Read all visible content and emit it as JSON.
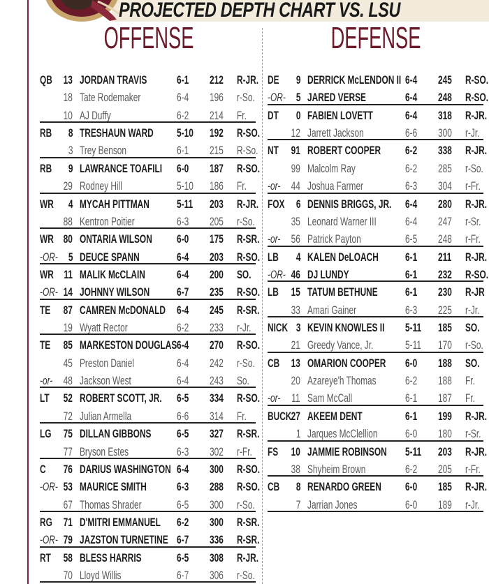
{
  "header": {
    "title": "PROJECTED DEPTH CHART VS. LSU",
    "logo": "seminole-head-logo"
  },
  "colors": {
    "maroon": "#6b1a2a",
    "banner": "#f3ecdc"
  },
  "offense": {
    "title": "OFFENSE",
    "rows": [
      {
        "pos": "QB",
        "num": "13",
        "name": "JORDAN TRAVIS",
        "ht": "6-1",
        "wt": "212",
        "cl": "R-JR.",
        "starter": true
      },
      {
        "pos": "",
        "num": "18",
        "name": "Tate Rodemaker",
        "ht": "6-4",
        "wt": "196",
        "cl": "r-So."
      },
      {
        "pos": "",
        "num": "10",
        "name": "AJ Duffy",
        "ht": "6-2",
        "wt": "214",
        "cl": "Fr.",
        "end": true
      },
      {
        "pos": "RB",
        "num": "8",
        "name": "TRESHAUN WARD",
        "ht": "5-10",
        "wt": "192",
        "cl": "R-SO.",
        "starter": true
      },
      {
        "pos": "",
        "num": "3",
        "name": "Trey Benson",
        "ht": "6-1",
        "wt": "215",
        "cl": "R-So.",
        "end": true
      },
      {
        "pos": "RB",
        "num": "9",
        "name": "LAWRANCE TOAFILI",
        "ht": "6-0",
        "wt": "187",
        "cl": "R-SO.",
        "starter": true
      },
      {
        "pos": "",
        "num": "29",
        "name": "Rodney Hill",
        "ht": "5-10",
        "wt": "186",
        "cl": "Fr.",
        "end": true
      },
      {
        "pos": "WR",
        "num": "4",
        "name": "MYCAH PITTMAN",
        "ht": "5-11",
        "wt": "203",
        "cl": "R-JR.",
        "starter": true
      },
      {
        "pos": "",
        "num": "88",
        "name": "Kentron Poitier",
        "ht": "6-3",
        "wt": "205",
        "cl": "r-So.",
        "end": true
      },
      {
        "pos": "WR",
        "num": "80",
        "name": "ONTARIA WILSON",
        "ht": "6-0",
        "wt": "175",
        "cl": "R-SR.",
        "starter": true
      },
      {
        "pos": "-OR-",
        "num": "5",
        "name": "DEUCE SPANN",
        "ht": "6-4",
        "wt": "203",
        "cl": "R-SO.",
        "starter": true,
        "or": true,
        "end": true
      },
      {
        "pos": "WR",
        "num": "11",
        "name": "MALIK McCLAIN",
        "ht": "6-4",
        "wt": "200",
        "cl": "SO.",
        "starter": true
      },
      {
        "pos": "-OR-",
        "num": "14",
        "name": "JOHNNY WILSON",
        "ht": "6-7",
        "wt": "235",
        "cl": "R-SO.",
        "starter": true,
        "or": true,
        "end": true
      },
      {
        "pos": "TE",
        "num": "87",
        "name": "CAMREN McDONALD",
        "ht": "6-4",
        "wt": "245",
        "cl": "R-SR.",
        "starter": true
      },
      {
        "pos": "",
        "num": "19",
        "name": "Wyatt Rector",
        "ht": "6-2",
        "wt": "233",
        "cl": "r-Jr.",
        "end": true
      },
      {
        "pos": "TE",
        "num": "85",
        "name": "MARKESTON DOUGLAS",
        "ht": "6-4",
        "wt": "270",
        "cl": "R-SO.",
        "starter": true
      },
      {
        "pos": "",
        "num": "45",
        "name": "Preston Daniel",
        "ht": "6-4",
        "wt": "242",
        "cl": "r-So."
      },
      {
        "pos": "-or-",
        "num": "48",
        "name": "Jackson West",
        "ht": "6-4",
        "wt": "243",
        "cl": "So.",
        "or": true,
        "end": true
      },
      {
        "pos": "LT",
        "num": "52",
        "name": "ROBERT SCOTT, JR.",
        "ht": "6-5",
        "wt": "334",
        "cl": "R-SO.",
        "starter": true
      },
      {
        "pos": "",
        "num": "72",
        "name": "Julian Armella",
        "ht": "6-6",
        "wt": "314",
        "cl": "Fr.",
        "end": true
      },
      {
        "pos": "LG",
        "num": "75",
        "name": "DILLAN GIBBONS",
        "ht": "6-5",
        "wt": "327",
        "cl": "R-SR.",
        "starter": true
      },
      {
        "pos": "",
        "num": "77",
        "name": "Bryson Estes",
        "ht": "6-3",
        "wt": "302",
        "cl": "r-Fr.",
        "end": true
      },
      {
        "pos": "C",
        "num": "76",
        "name": "DARIUS WASHINGTON",
        "ht": "6-4",
        "wt": "300",
        "cl": "R-SO.",
        "starter": true
      },
      {
        "pos": "-OR-",
        "num": "53",
        "name": "MAURICE SMITH",
        "ht": "6-3",
        "wt": "288",
        "cl": "R-SO.",
        "starter": true,
        "or": true
      },
      {
        "pos": "",
        "num": "67",
        "name": "Thomas Shrader",
        "ht": "6-5",
        "wt": "300",
        "cl": "r-So.",
        "end": true
      },
      {
        "pos": "RG",
        "num": "71",
        "name": "D'MITRI EMMANUEL",
        "ht": "6-2",
        "wt": "300",
        "cl": "R-SR.",
        "starter": true
      },
      {
        "pos": "-OR-",
        "num": "79",
        "name": "JAZSTON TURNETINE",
        "ht": "6-7",
        "wt": "336",
        "cl": "R-SR.",
        "starter": true,
        "or": true,
        "end": true
      },
      {
        "pos": "RT",
        "num": "58",
        "name": "BLESS HARRIS",
        "ht": "6-5",
        "wt": "308",
        "cl": "R-JR.",
        "starter": true
      },
      {
        "pos": "",
        "num": "70",
        "name": "Lloyd Willis",
        "ht": "6-7",
        "wt": "306",
        "cl": "r-So.",
        "end": true
      }
    ]
  },
  "defense": {
    "title": "DEFENSE",
    "rows": [
      {
        "pos": "DE",
        "num": "9",
        "name": "DERRICK McLENDON II",
        "ht": "6-4",
        "wt": "245",
        "cl": "R-SO.",
        "starter": true
      },
      {
        "pos": "-OR-",
        "num": "5",
        "name": "JARED VERSE",
        "ht": "6-4",
        "wt": "248",
        "cl": "R-SO.",
        "starter": true,
        "or": true,
        "end": true
      },
      {
        "pos": "DT",
        "num": "0",
        "name": "FABIEN LOVETT",
        "ht": "6-4",
        "wt": "318",
        "cl": "R-JR.",
        "starter": true
      },
      {
        "pos": "",
        "num": "12",
        "name": "Jarrett Jackson",
        "ht": "6-6",
        "wt": "300",
        "cl": "r-Jr.",
        "end": true
      },
      {
        "pos": "NT",
        "num": "91",
        "name": "ROBERT COOPER",
        "ht": "6-2",
        "wt": "338",
        "cl": "R-JR.",
        "starter": true
      },
      {
        "pos": "",
        "num": "99",
        "name": "Malcolm Ray",
        "ht": "6-2",
        "wt": "285",
        "cl": "r-So."
      },
      {
        "pos": "-or-",
        "num": "44",
        "name": "Joshua Farmer",
        "ht": "6-3",
        "wt": "304",
        "cl": "r-Fr.",
        "or": true,
        "end": true
      },
      {
        "pos": "FOX",
        "num": "6",
        "name": "DENNIS BRIGGS, JR.",
        "ht": "6-4",
        "wt": "280",
        "cl": "R-JR.",
        "starter": true
      },
      {
        "pos": "",
        "num": "35",
        "name": "Leonard Warner III",
        "ht": "6-4",
        "wt": "247",
        "cl": "r-Sr."
      },
      {
        "pos": "-or-",
        "num": "56",
        "name": "Patrick Payton",
        "ht": "6-5",
        "wt": "248",
        "cl": "r-Fr.",
        "or": true,
        "end": true
      },
      {
        "pos": "LB",
        "num": "4",
        "name": "KALEN DeLOACH",
        "ht": "6-1",
        "wt": "211",
        "cl": "R-JR.",
        "starter": true
      },
      {
        "pos": "-OR-",
        "num": "46",
        "name": "DJ LUNDY",
        "ht": "6-1",
        "wt": "232",
        "cl": "R-SO.",
        "starter": true,
        "or": true,
        "end": true
      },
      {
        "pos": "LB",
        "num": "15",
        "name": "TATUM BETHUNE",
        "ht": "6-1",
        "wt": "230",
        "cl": "R-JR",
        "starter": true
      },
      {
        "pos": "",
        "num": "33",
        "name": "Amari Gainer",
        "ht": "6-3",
        "wt": "225",
        "cl": "r-Jr.",
        "end": true
      },
      {
        "pos": "NICK",
        "num": "3",
        "name": "KEVIN KNOWLES II",
        "ht": "5-11",
        "wt": "185",
        "cl": "SO.",
        "starter": true
      },
      {
        "pos": "",
        "num": "21",
        "name": "Greedy Vance, Jr.",
        "ht": "5-11",
        "wt": "170",
        "cl": "r-So.",
        "end": true
      },
      {
        "pos": "CB",
        "num": "13",
        "name": "OMARION COOPER",
        "ht": "6-0",
        "wt": "188",
        "cl": "SO.",
        "starter": true
      },
      {
        "pos": "",
        "num": "20",
        "name": "Azareye'h Thomas",
        "ht": "6-2",
        "wt": "188",
        "cl": "Fr."
      },
      {
        "pos": "-or-",
        "num": "11",
        "name": "Sam McCall",
        "ht": "6-1",
        "wt": "187",
        "cl": "Fr.",
        "or": true,
        "end": true
      },
      {
        "pos": "BUCK",
        "num": "27",
        "name": "AKEEM DENT",
        "ht": "6-1",
        "wt": "199",
        "cl": "R-JR.",
        "starter": true
      },
      {
        "pos": "",
        "num": "1",
        "name": "Jarques McClellion",
        "ht": "6-0",
        "wt": "180",
        "cl": "r-Sr.",
        "end": true
      },
      {
        "pos": "FS",
        "num": "10",
        "name": "JAMMIE ROBINSON",
        "ht": "5-11",
        "wt": "203",
        "cl": "R-JR.",
        "starter": true
      },
      {
        "pos": "",
        "num": "38",
        "name": "Shyheim Brown",
        "ht": "6-2",
        "wt": "205",
        "cl": "r-Fr.",
        "end": true
      },
      {
        "pos": "CB",
        "num": "8",
        "name": "RENARDO GREEN",
        "ht": "6-0",
        "wt": "185",
        "cl": "R-JR.",
        "starter": true
      },
      {
        "pos": "",
        "num": "7",
        "name": "Jarrian Jones",
        "ht": "6-0",
        "wt": "189",
        "cl": "r-Jr.",
        "end": true
      }
    ]
  }
}
